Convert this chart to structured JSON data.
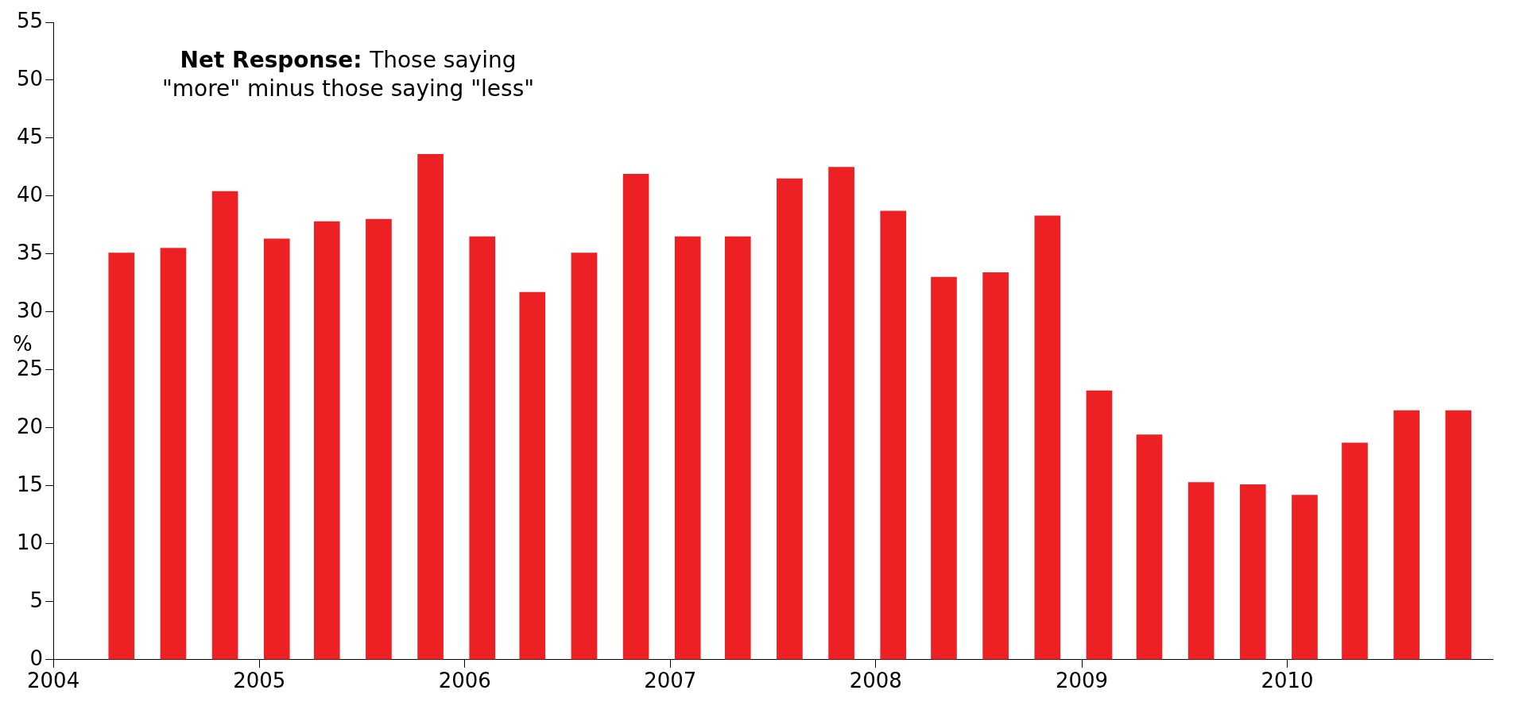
{
  "chart_data": {
    "type": "bar",
    "ylabel": "%",
    "annotations": [
      "Net Response:",
      "Those saying \"more\" minus those saying \"less\""
    ],
    "x": [
      "2004-05",
      "2004-08",
      "2004-11",
      "2005-02",
      "2005-05",
      "2005-08",
      "2005-11",
      "2006-02",
      "2006-05",
      "2006-08",
      "2006-11",
      "2007-02",
      "2007-05",
      "2007-08",
      "2007-11",
      "2008-02",
      "2008-05",
      "2008-08",
      "2008-11",
      "2009-02",
      "2009-05",
      "2009-08",
      "2009-11",
      "2010-02",
      "2010-05",
      "2010-08",
      "2010-11"
    ],
    "values": [
      35.1,
      35.5,
      40.4,
      36.3,
      37.8,
      38,
      43.6,
      36.5,
      31.7,
      35.1,
      41.9,
      36.5,
      36.5,
      41.5,
      42.5,
      38.7,
      33,
      33.4,
      38.3,
      23.2,
      19.4,
      15.3,
      15.1,
      14.2,
      18.7,
      21.5,
      21.5
    ],
    "color": "#ed2024",
    "xlim": [
      "2004",
      "2011"
    ],
    "xticks": [
      "2004",
      "2005",
      "2006",
      "2007",
      "2008",
      "2009",
      "2010"
    ],
    "ylim": [
      0,
      55
    ],
    "yticks": [
      0,
      5,
      10,
      15,
      20,
      25,
      30,
      35,
      40,
      45,
      50,
      55
    ],
    "grid": false,
    "legend": false
  }
}
